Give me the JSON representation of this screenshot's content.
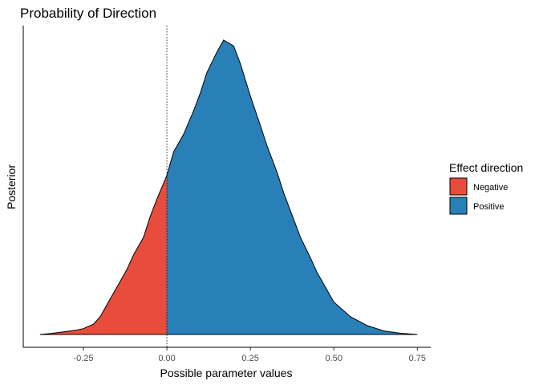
{
  "chart_data": {
    "type": "area",
    "title": "Probability of Direction",
    "xlabel": "Possible parameter values",
    "ylabel": "Posterior",
    "xlim": [
      -0.43,
      0.79
    ],
    "xticks": [
      -0.25,
      0.0,
      0.25,
      0.5,
      0.75
    ],
    "xtick_labels": [
      "-0.25",
      "0.00",
      "0.25",
      "0.50",
      "0.75"
    ],
    "y_axis_ticks": "none",
    "grid": false,
    "legend": {
      "title": "Effect direction",
      "placement": "right",
      "entries": [
        {
          "name": "Negative",
          "color": "#E74C3C"
        },
        {
          "name": "Positive",
          "color": "#2980B9"
        }
      ]
    },
    "vline": {
      "x": 0.0,
      "style": "dotted"
    },
    "density": {
      "x": [
        -0.38,
        -0.35,
        -0.3,
        -0.27,
        -0.25,
        -0.22,
        -0.2,
        -0.18,
        -0.15,
        -0.12,
        -0.1,
        -0.07,
        -0.05,
        -0.03,
        0.0,
        0.02,
        0.05,
        0.08,
        0.1,
        0.12,
        0.15,
        0.17,
        0.2,
        0.22,
        0.25,
        0.28,
        0.3,
        0.33,
        0.35,
        0.38,
        0.4,
        0.43,
        0.45,
        0.48,
        0.5,
        0.55,
        0.6,
        0.65,
        0.7,
        0.75
      ],
      "y": [
        0.0,
        0.003,
        0.01,
        0.015,
        0.02,
        0.035,
        0.06,
        0.1,
        0.16,
        0.22,
        0.27,
        0.33,
        0.4,
        0.46,
        0.54,
        0.62,
        0.68,
        0.76,
        0.82,
        0.89,
        0.96,
        1.0,
        0.98,
        0.92,
        0.81,
        0.71,
        0.64,
        0.55,
        0.48,
        0.39,
        0.33,
        0.26,
        0.21,
        0.15,
        0.11,
        0.06,
        0.03,
        0.012,
        0.004,
        0.0
      ],
      "split_at": 0.0,
      "negative_color": "#E74C3C",
      "positive_color": "#2980B9"
    }
  }
}
